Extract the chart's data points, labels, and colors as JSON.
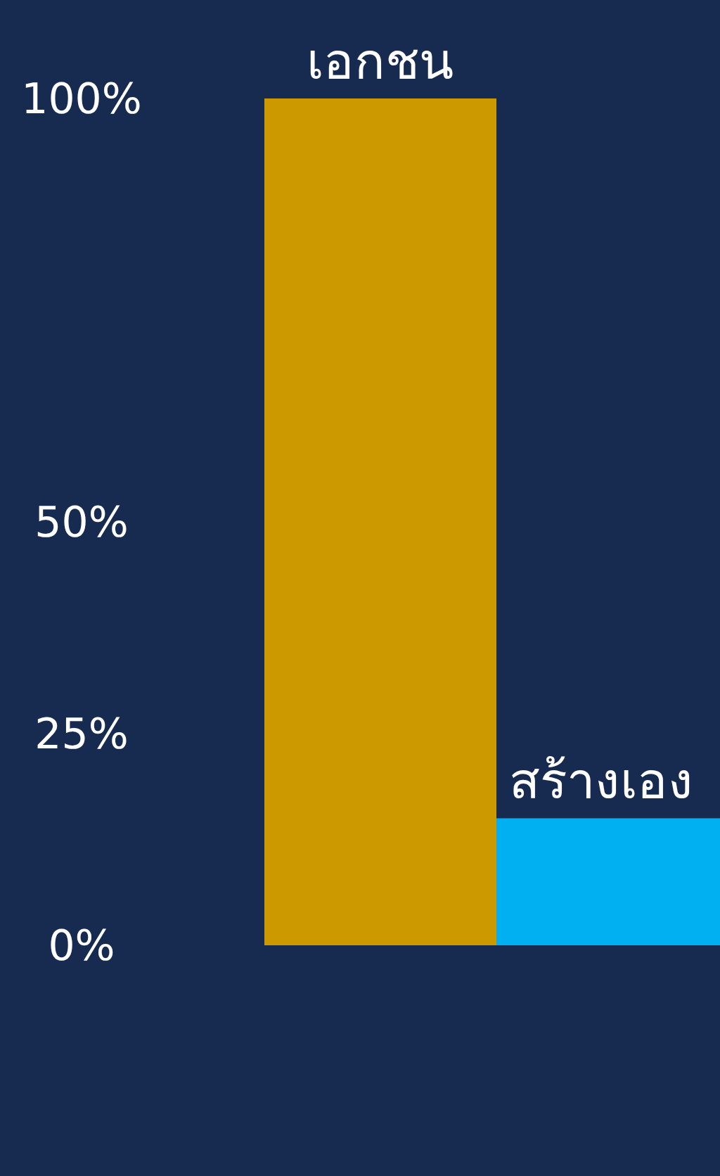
{
  "chart_data": {
    "type": "bar",
    "categories": [
      "เอกชน",
      "สร้างเอง"
    ],
    "values": [
      100,
      15
    ],
    "colors": [
      "#cc9900",
      "#00b0f0"
    ],
    "ylim": [
      0,
      100
    ],
    "yticks": [
      {
        "value": 0,
        "label": "0%"
      },
      {
        "value": 25,
        "label": "25%"
      },
      {
        "value": 50,
        "label": "50%"
      },
      {
        "value": 100,
        "label": "100%"
      }
    ],
    "grid": false
  }
}
